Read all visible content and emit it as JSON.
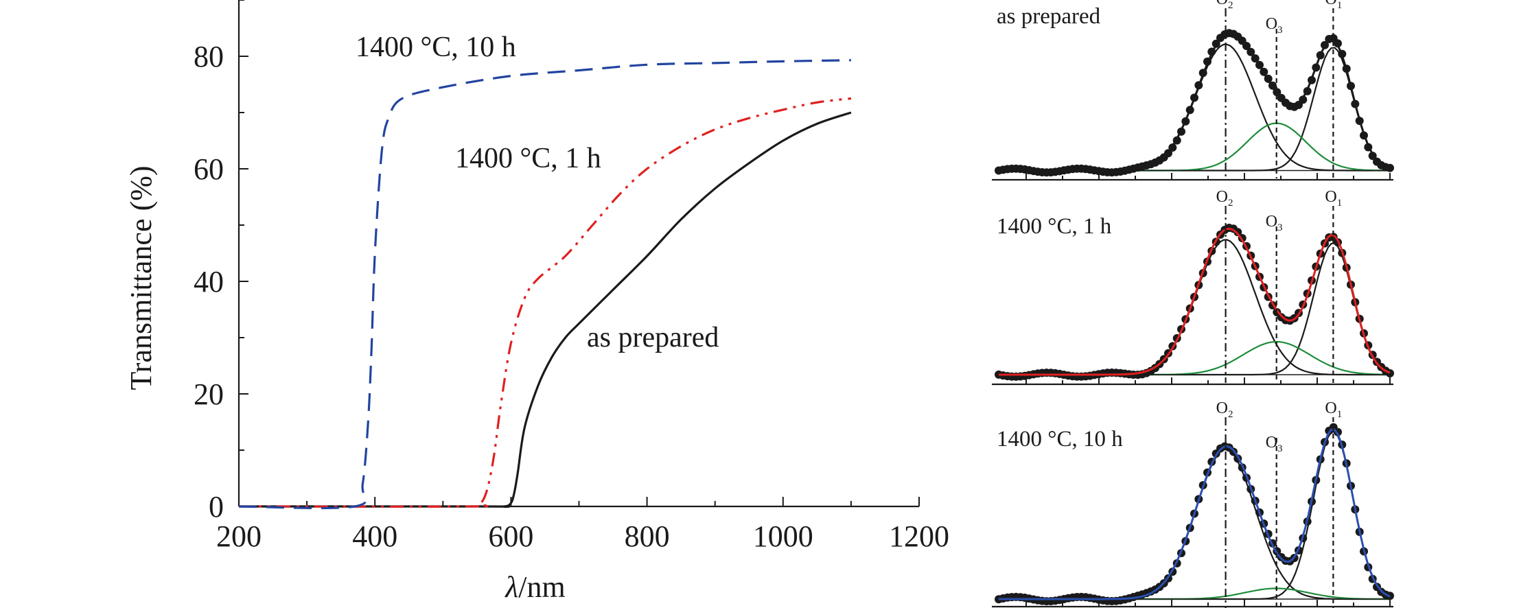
{
  "chart_data": [
    {
      "type": "line",
      "title": "",
      "xlabel_symbol": "λ",
      "xlabel_unit": "/nm",
      "ylabel": "Transmittance (%)",
      "xlim": [
        200,
        1200
      ],
      "ylim": [
        0,
        90
      ],
      "xticks": [
        200,
        400,
        600,
        800,
        1000,
        1200
      ],
      "yticks": [
        0,
        20,
        40,
        60,
        80
      ],
      "grid": false,
      "series": [
        {
          "name": "as prepared",
          "color": "#1a1a1a",
          "style": "solid",
          "x": [
            200,
            560,
            590,
            600,
            605,
            610,
            620,
            640,
            660,
            680,
            700,
            750,
            800,
            850,
            900,
            950,
            1000,
            1050,
            1100
          ],
          "y": [
            0,
            0,
            0,
            0.6,
            2.5,
            6,
            14,
            21.5,
            26.5,
            30,
            32.5,
            38.5,
            44.5,
            51,
            56.5,
            61,
            65,
            68,
            70
          ]
        },
        {
          "name": "1400 °C, 1 h",
          "color": "#e02020",
          "style": "dashdotdot",
          "x": [
            200,
            540,
            555,
            565,
            575,
            585,
            600,
            620,
            640,
            680,
            720,
            760,
            800,
            850,
            900,
            950,
            1000,
            1050,
            1100
          ],
          "y": [
            0,
            0,
            0.5,
            3,
            9,
            18,
            29,
            37,
            40.5,
            44.5,
            50,
            55.5,
            60,
            64,
            67,
            69,
            70.5,
            71.8,
            72.5
          ]
        },
        {
          "name": "1400 °C, 10 h",
          "color": "#2244a0",
          "style": "dashed",
          "x": [
            200,
            370,
            382,
            390,
            395,
            400,
            410,
            420,
            440,
            500,
            600,
            700,
            800,
            900,
            1000,
            1100
          ],
          "y": [
            0,
            0,
            4,
            15,
            28,
            45,
            63,
            69,
            72.5,
            74.5,
            76.5,
            77.5,
            78.5,
            78.8,
            79.1,
            79.3
          ]
        }
      ],
      "annotations": [
        "1400 °C, 10 h",
        "1400 °C, 1 h",
        "as prepared"
      ]
    },
    {
      "type": "line",
      "subtype": "peak deconvolution (O 1s spectra), stacked panels",
      "panels": [
        {
          "label": "as prepared",
          "fit_color": "#1a1a1a",
          "baseline": 0.05,
          "components": [
            {
              "name": "O₂",
              "center": 0.58,
              "height": 0.8,
              "width": 0.075,
              "color": "#1a1a1a"
            },
            {
              "name": "O₁",
              "center": 0.855,
              "height": 0.78,
              "width": 0.05,
              "color": "#1a1a1a"
            },
            {
              "name": "O₃",
              "center": 0.71,
              "height": 0.3,
              "width": 0.075,
              "color": "#1e8c3a"
            }
          ]
        },
        {
          "label": "1400 °C, 1 h",
          "fit_color": "#e02020",
          "baseline": 0.05,
          "components": [
            {
              "name": "O₂",
              "center": 0.58,
              "height": 0.82,
              "width": 0.075,
              "color": "#1a1a1a"
            },
            {
              "name": "O₁",
              "center": 0.855,
              "height": 0.8,
              "width": 0.05,
              "color": "#1a1a1a"
            },
            {
              "name": "O₃",
              "center": 0.71,
              "height": 0.2,
              "width": 0.085,
              "color": "#1e8c3a"
            }
          ]
        },
        {
          "label": "1400 °C, 10 h",
          "fit_color": "#2a4fb0",
          "baseline": 0.05,
          "components": [
            {
              "name": "O₂",
              "center": 0.58,
              "height": 0.84,
              "width": 0.075,
              "color": "#1a1a1a"
            },
            {
              "name": "O₁",
              "center": 0.855,
              "height": 0.94,
              "width": 0.05,
              "color": "#1a1a1a"
            },
            {
              "name": "O₃",
              "center": 0.71,
              "height": 0.06,
              "width": 0.08,
              "color": "#1e8c3a"
            }
          ]
        }
      ],
      "peak_labels": {
        "O2": "O",
        "O2_sub": "2",
        "O3": "O",
        "O3_sub": "3",
        "O1": "O",
        "O1_sub": "1"
      }
    }
  ]
}
